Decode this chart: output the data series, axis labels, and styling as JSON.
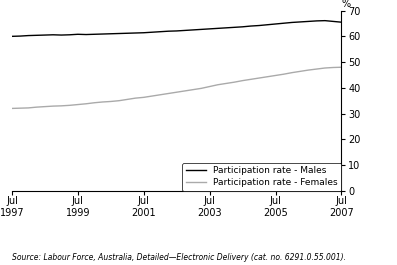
{
  "source_text": "Source: Labour Force, Australia, Detailed—Electronic Delivery (cat. no. 6291.0.55.001).",
  "ylabel": "%",
  "ylim": [
    0,
    70
  ],
  "yticks": [
    0,
    10,
    20,
    30,
    40,
    50,
    60,
    70
  ],
  "xtick_labels": [
    "Jul\n1997",
    "Jul\n1999",
    "Jul\n2001",
    "Jul\n2003",
    "Jul\n2005",
    "Jul\n2007"
  ],
  "xtick_positions": [
    1997.5,
    1999.5,
    2001.5,
    2003.5,
    2005.5,
    2007.5
  ],
  "xlim": [
    1997.5,
    2007.5
  ],
  "males_color": "#000000",
  "females_color": "#aaaaaa",
  "legend_labels": [
    "Participation rate - Males",
    "Participation rate - Females"
  ],
  "males_data": {
    "x": [
      1997.5,
      1997.75,
      1998.0,
      1998.25,
      1998.5,
      1998.75,
      1999.0,
      1999.25,
      1999.5,
      1999.75,
      2000.0,
      2000.25,
      2000.5,
      2000.75,
      2001.0,
      2001.25,
      2001.5,
      2001.75,
      2002.0,
      2002.25,
      2002.5,
      2002.75,
      2003.0,
      2003.25,
      2003.5,
      2003.75,
      2004.0,
      2004.25,
      2004.5,
      2004.75,
      2005.0,
      2005.25,
      2005.5,
      2005.75,
      2006.0,
      2006.25,
      2006.5,
      2006.75,
      2007.0,
      2007.25,
      2007.5
    ],
    "y": [
      60.0,
      60.1,
      60.3,
      60.4,
      60.5,
      60.6,
      60.5,
      60.6,
      60.8,
      60.7,
      60.8,
      60.9,
      61.0,
      61.1,
      61.2,
      61.3,
      61.4,
      61.6,
      61.8,
      62.0,
      62.1,
      62.3,
      62.5,
      62.7,
      62.9,
      63.1,
      63.3,
      63.5,
      63.7,
      64.0,
      64.2,
      64.5,
      64.8,
      65.1,
      65.4,
      65.6,
      65.8,
      66.0,
      66.1,
      65.8,
      65.5
    ]
  },
  "females_data": {
    "x": [
      1997.5,
      1997.75,
      1998.0,
      1998.25,
      1998.5,
      1998.75,
      1999.0,
      1999.25,
      1999.5,
      1999.75,
      2000.0,
      2000.25,
      2000.5,
      2000.75,
      2001.0,
      2001.25,
      2001.5,
      2001.75,
      2002.0,
      2002.25,
      2002.5,
      2002.75,
      2003.0,
      2003.25,
      2003.5,
      2003.75,
      2004.0,
      2004.25,
      2004.5,
      2004.75,
      2005.0,
      2005.25,
      2005.5,
      2005.75,
      2006.0,
      2006.25,
      2006.5,
      2006.75,
      2007.0,
      2007.25,
      2007.5
    ],
    "y": [
      32.0,
      32.1,
      32.2,
      32.5,
      32.7,
      32.9,
      33.0,
      33.2,
      33.5,
      33.8,
      34.2,
      34.5,
      34.7,
      35.0,
      35.5,
      36.0,
      36.3,
      36.8,
      37.3,
      37.8,
      38.3,
      38.8,
      39.3,
      39.8,
      40.5,
      41.2,
      41.7,
      42.2,
      42.8,
      43.3,
      43.8,
      44.3,
      44.8,
      45.3,
      45.9,
      46.4,
      46.9,
      47.3,
      47.7,
      47.9,
      48.0
    ]
  },
  "background_color": "#ffffff",
  "line_width": 1.0
}
